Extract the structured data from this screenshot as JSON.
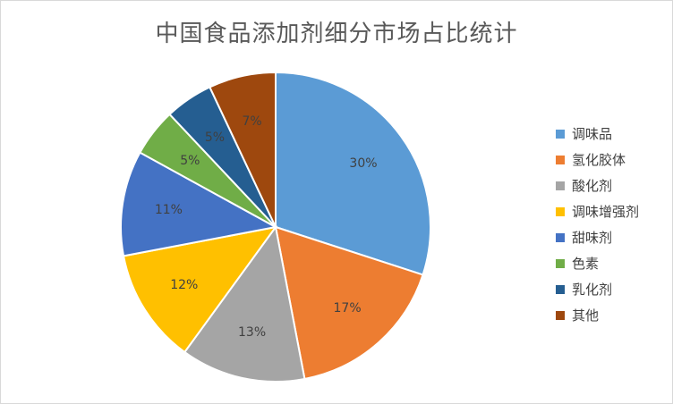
{
  "chart_data": {
    "type": "pie",
    "title": "中国食品添加剂细分市场占比统计",
    "categories": [
      "调味品",
      "氢化胶体",
      "酸化剂",
      "调味增强剂",
      "甜味剂",
      "色素",
      "乳化剂",
      "其他"
    ],
    "values": [
      30,
      17,
      13,
      12,
      11,
      5,
      5,
      7
    ],
    "data_labels": [
      "30%",
      "17%",
      "13%",
      "12%",
      "11%",
      "5%",
      "5%",
      "7%"
    ],
    "colors": [
      "#5b9bd5",
      "#ed7d31",
      "#a5a5a5",
      "#ffc000",
      "#4472c4",
      "#70ad47",
      "#255e91",
      "#9e480e"
    ],
    "label_colors": [
      "#404040",
      "#404040",
      "#404040",
      "#404040",
      "#404040",
      "#404040",
      "#404040",
      "#404040"
    ],
    "legend_position": "right"
  }
}
